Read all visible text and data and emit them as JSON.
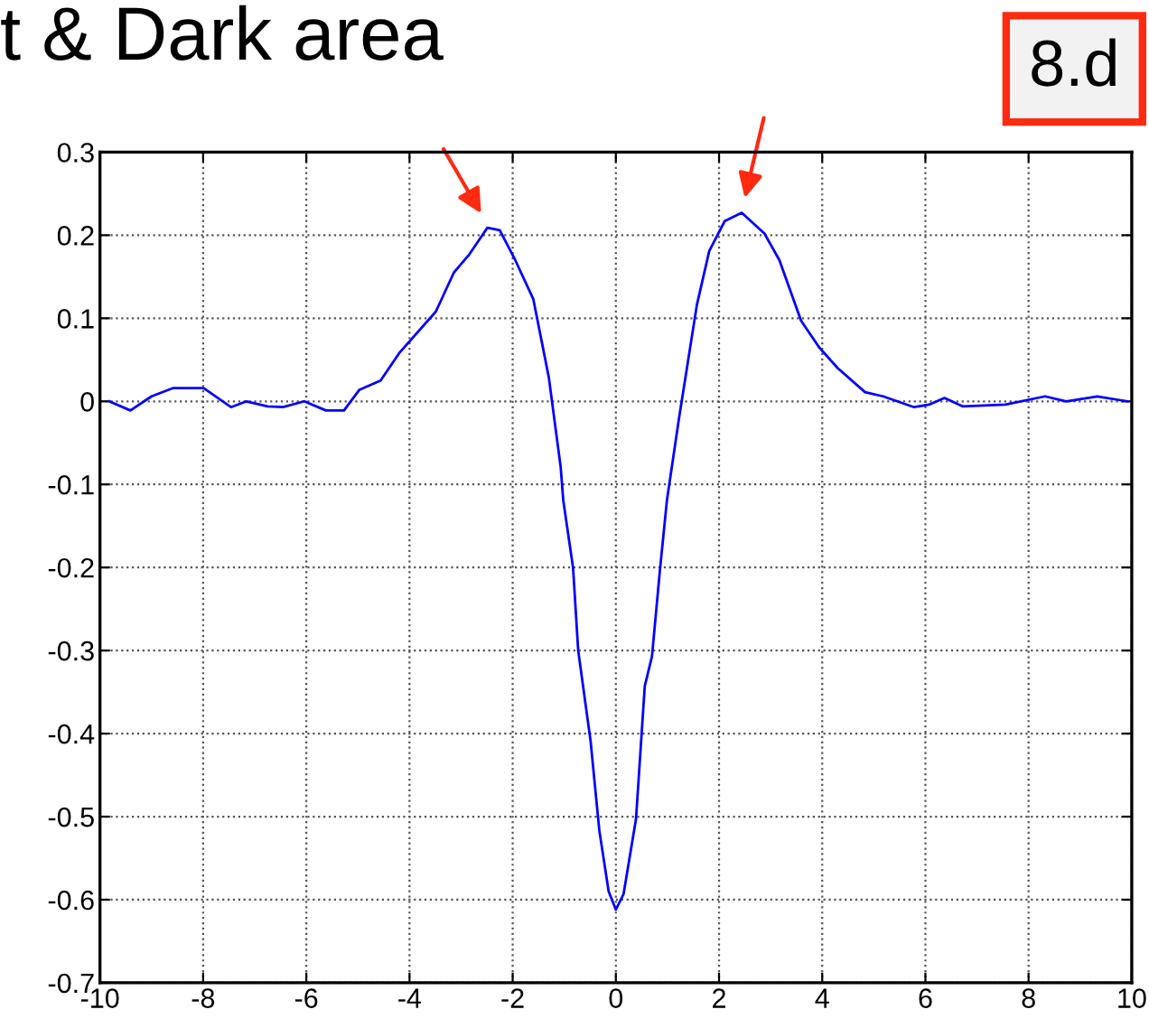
{
  "chart_data": {
    "type": "line",
    "title": "t & Dark area",
    "annotations": [
      "8.d"
    ],
    "x": [
      -9.82,
      -9.41,
      -9.0,
      -8.58,
      -7.99,
      -7.46,
      -7.16,
      -6.75,
      -6.45,
      -6.04,
      -5.62,
      -5.27,
      -4.97,
      -4.56,
      -4.2,
      -3.49,
      -3.14,
      -2.84,
      -2.49,
      -2.25,
      -1.95,
      -1.6,
      -1.3,
      -1.07,
      -1.02,
      -0.83,
      -0.73,
      -0.49,
      -0.32,
      -0.14,
      0,
      0.15,
      0.39,
      0.56,
      0.7,
      0.85,
      0.99,
      1.22,
      1.57,
      1.81,
      2.11,
      2.44,
      2.88,
      3.17,
      3.59,
      3.94,
      4.3,
      4.83,
      5.18,
      5.78,
      6.07,
      6.37,
      6.72,
      7.55,
      8.32,
      8.73,
      9.33,
      9.92
    ],
    "series": [
      {
        "color": "#0000ff",
        "values": [
          0,
          -0.011,
          0.006,
          0.016,
          0.016,
          -0.007,
          0,
          -0.006,
          -0.007,
          0,
          -0.011,
          -0.011,
          0.014,
          0.025,
          0.058,
          0.108,
          0.155,
          0.177,
          0.209,
          0.206,
          0.17,
          0.123,
          0.029,
          -0.079,
          -0.119,
          -0.2,
          -0.3,
          -0.409,
          -0.517,
          -0.59,
          -0.612,
          -0.593,
          -0.503,
          -0.343,
          -0.307,
          -0.206,
          -0.119,
          -0.022,
          0.116,
          0.181,
          0.217,
          0.227,
          0.202,
          0.17,
          0.097,
          0.065,
          0.04,
          0.011,
          0.006,
          -0.007,
          -0.004,
          0.004,
          -0.006,
          -0.004,
          0.006,
          0,
          0.006,
          0
        ]
      }
    ],
    "xlim": [
      -10,
      10
    ],
    "xticks": [
      -10,
      -8,
      -6,
      -4,
      -2,
      0,
      2,
      4,
      6,
      8,
      10
    ],
    "ylim": [
      -0.7,
      0.3
    ],
    "yticks": [
      -0.7,
      -0.6,
      -0.5,
      -0.4,
      -0.3,
      -0.2,
      -0.1,
      0,
      0.1,
      0.2,
      0.3
    ],
    "grid": true,
    "line_style": "solid"
  }
}
